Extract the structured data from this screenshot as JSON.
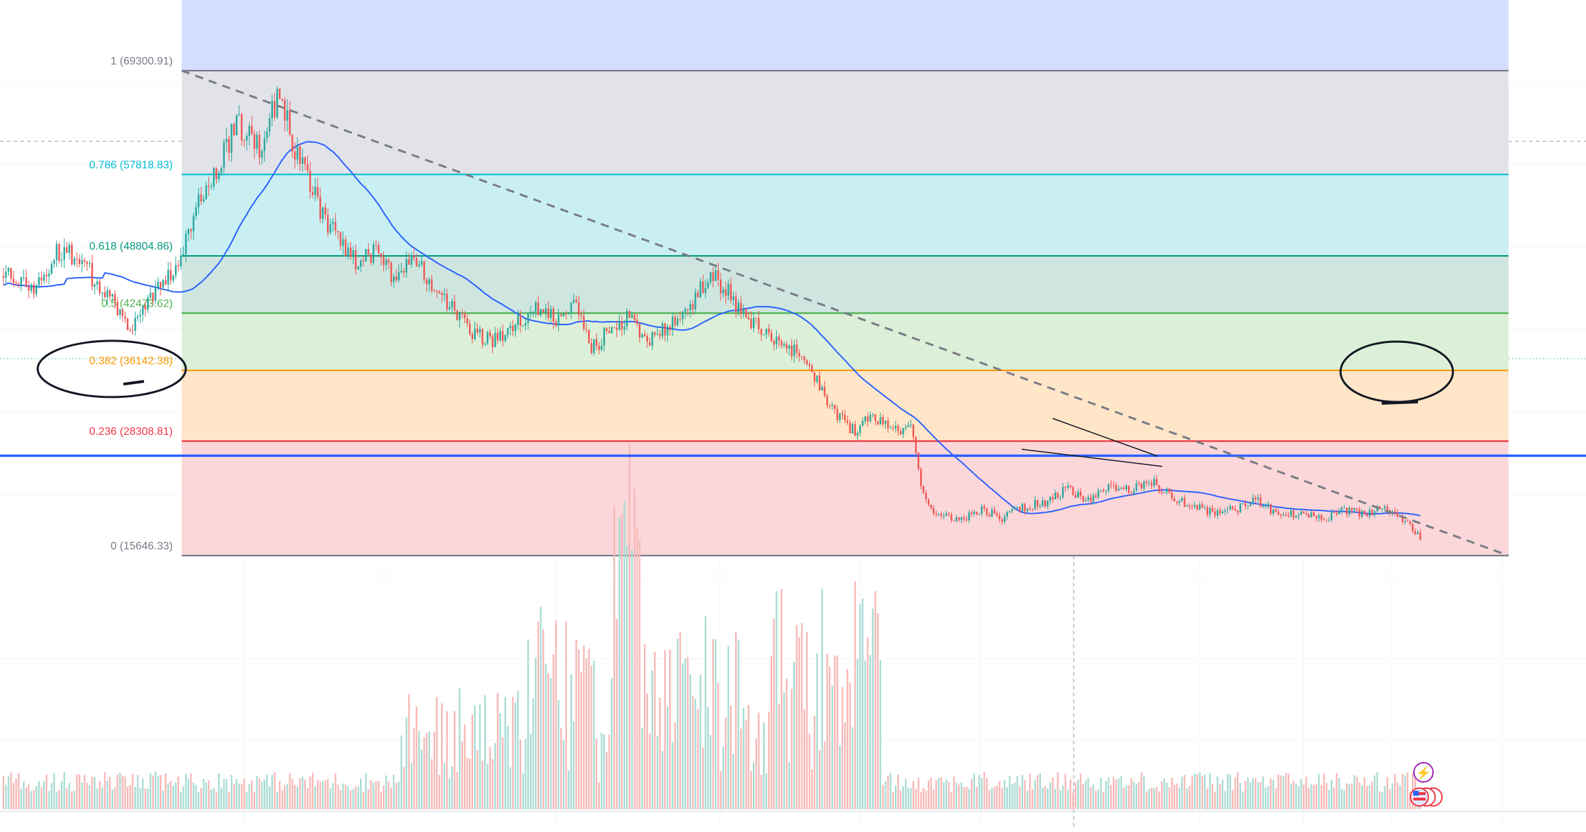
{
  "chart_data": {
    "type": "line",
    "subtype": "candlestick-with-fibonacci-retracement",
    "title": "",
    "xlabel": "",
    "ylabel": "",
    "price_range": [
      15646.33,
      69300.91
    ],
    "grid": true,
    "fibonacci": {
      "start_price": 69300.91,
      "end_price": 15646.33,
      "levels": [
        {
          "ratio": "1",
          "value": "69300.91",
          "label": "1 (69300.91)",
          "color": "#787b86",
          "band_color": "#e1e3e8"
        },
        {
          "ratio": "0.786",
          "value": "57818.83",
          "label": "0.786 (57818.83)",
          "color": "#00bcd4",
          "band_color": "#c9eff2"
        },
        {
          "ratio": "0.618",
          "value": "48804.86",
          "label": "0.618 (48804.86)",
          "color": "#089981",
          "band_color": "#cfe6e0"
        },
        {
          "ratio": "0.5",
          "value": "42473.62",
          "label": "0.5 (42473.62)",
          "color": "#4caf50",
          "band_color": "#dcefd9"
        },
        {
          "ratio": "0.382",
          "value": "36142.38",
          "label": "0.382 (36142.38)",
          "color": "#ff9800",
          "band_color": "#ffe6c8"
        },
        {
          "ratio": "0.236",
          "value": "28308.81",
          "label": "0.236 (28308.81)",
          "color": "#f23645",
          "band_color": "#fbd7da"
        },
        {
          "ratio": "0",
          "value": "15646.33",
          "label": "0 (15646.33)",
          "color": "#787b86",
          "band_color": ""
        }
      ],
      "top_band_color": "#d4dfff"
    },
    "horizontal_line": {
      "price": 26700,
      "color": "#2962ff"
    },
    "trend_line": {
      "from": [
        0,
        69300.91
      ],
      "to": [
        1,
        15646.33
      ],
      "style": "dashed",
      "color": "#787b86"
    },
    "series": [
      {
        "type": "candlestick",
        "up_color": "#26a69a",
        "down_color": "#ef5350",
        "path": [
          [
            0,
            47500
          ],
          [
            0.02,
            45200
          ],
          [
            0.04,
            49500
          ],
          [
            0.055,
            48000
          ],
          [
            0.075,
            44200
          ],
          [
            0.09,
            40600
          ],
          [
            0.105,
            44000
          ],
          [
            0.12,
            47200
          ],
          [
            0.135,
            53500
          ],
          [
            0.15,
            58000
          ],
          [
            0.165,
            63500
          ],
          [
            0.18,
            60500
          ],
          [
            0.195,
            66500
          ],
          [
            0.205,
            61000
          ],
          [
            0.215,
            57000
          ],
          [
            0.225,
            53500
          ],
          [
            0.235,
            51000
          ],
          [
            0.25,
            48200
          ],
          [
            0.265,
            49200
          ],
          [
            0.275,
            46000
          ],
          [
            0.29,
            48500
          ],
          [
            0.305,
            45500
          ],
          [
            0.315,
            43000
          ],
          [
            0.33,
            40500
          ],
          [
            0.345,
            39500
          ],
          [
            0.36,
            41000
          ],
          [
            0.375,
            43500
          ],
          [
            0.39,
            41500
          ],
          [
            0.405,
            43200
          ],
          [
            0.415,
            38500
          ],
          [
            0.43,
            41000
          ],
          [
            0.445,
            42000
          ],
          [
            0.455,
            39000
          ],
          [
            0.47,
            41500
          ],
          [
            0.485,
            43500
          ],
          [
            0.5,
            47000
          ],
          [
            0.51,
            45000
          ],
          [
            0.52,
            42500
          ],
          [
            0.535,
            41000
          ],
          [
            0.55,
            39000
          ],
          [
            0.56,
            38000
          ],
          [
            0.57,
            36000
          ],
          [
            0.58,
            33000
          ],
          [
            0.59,
            31000
          ],
          [
            0.6,
            29500
          ],
          [
            0.615,
            31000
          ],
          [
            0.63,
            29500
          ],
          [
            0.64,
            30000
          ],
          [
            0.65,
            21500
          ],
          [
            0.66,
            20300
          ],
          [
            0.675,
            19700
          ],
          [
            0.69,
            20800
          ],
          [
            0.705,
            19800
          ],
          [
            0.72,
            21000
          ],
          [
            0.735,
            21500
          ],
          [
            0.75,
            23000
          ],
          [
            0.765,
            21800
          ],
          [
            0.78,
            23500
          ],
          [
            0.795,
            22800
          ],
          [
            0.81,
            24000
          ],
          [
            0.825,
            22000
          ],
          [
            0.84,
            21000
          ],
          [
            0.855,
            20300
          ],
          [
            0.87,
            20800
          ],
          [
            0.885,
            21800
          ],
          [
            0.9,
            20000
          ],
          [
            0.915,
            20300
          ],
          [
            0.93,
            19700
          ],
          [
            0.945,
            20500
          ],
          [
            0.96,
            20300
          ],
          [
            0.975,
            21000
          ],
          [
            0.99,
            19200
          ],
          [
            1.0,
            17600
          ]
        ]
      },
      {
        "type": "moving-average",
        "color": "#2962ff",
        "points": [
          [
            0,
            45000
          ],
          [
            0.04,
            45900
          ],
          [
            0.08,
            46500
          ],
          [
            0.12,
            46800
          ],
          [
            0.16,
            47100
          ],
          [
            0.2,
            47600
          ],
          [
            0.24,
            48300
          ],
          [
            0.28,
            48900
          ],
          [
            0.32,
            49300
          ],
          [
            0.34,
            49200
          ],
          [
            0.38,
            48800
          ],
          [
            0.42,
            48000
          ],
          [
            0.46,
            46000
          ]
        ]
      }
    ],
    "volume": {
      "up_color": "#a9dcd4",
      "down_color": "#f7b9b7"
    },
    "annotations": [
      {
        "type": "hand-drawn-ellipse",
        "target": "0.382 (36142.38)"
      },
      {
        "type": "hand-drawn-ellipse",
        "target": "latest candles"
      },
      {
        "type": "falling-wedge",
        "color": "#131722"
      }
    ]
  },
  "overlay_badges": [
    {
      "name": "lightning-icon",
      "glyph": "⚡",
      "color": "#9c27b0"
    },
    {
      "name": "us-flag-icon",
      "glyph": "🇺🇸",
      "color": "#f23645"
    }
  ]
}
